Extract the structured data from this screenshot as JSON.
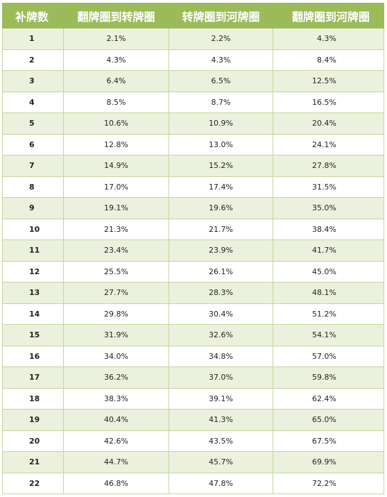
{
  "headers": [
    "补牌数",
    "翻牌圈到转牌圈",
    "转牌圈到河牌圈",
    "翻牌圈到河牌圈"
  ],
  "rows": [
    [
      "1",
      "2.1%",
      "2.2%",
      "4.3%"
    ],
    [
      "2",
      "4.3%",
      "4.3%",
      "8.4%"
    ],
    [
      "3",
      "6.4%",
      "6.5%",
      "12.5%"
    ],
    [
      "4",
      "8.5%",
      "8.7%",
      "16.5%"
    ],
    [
      "5",
      "10.6%",
      "10.9%",
      "20.4%"
    ],
    [
      "6",
      "12.8%",
      "13.0%",
      "24.1%"
    ],
    [
      "7",
      "14.9%",
      "15.2%",
      "27.8%"
    ],
    [
      "8",
      "17.0%",
      "17.4%",
      "31.5%"
    ],
    [
      "9",
      "19.1%",
      "19.6%",
      "35.0%"
    ],
    [
      "10",
      "21.3%",
      "21.7%",
      "38.4%"
    ],
    [
      "11",
      "23.4%",
      "23.9%",
      "41.7%"
    ],
    [
      "12",
      "25.5%",
      "26.1%",
      "45.0%"
    ],
    [
      "13",
      "27.7%",
      "28.3%",
      "48.1%"
    ],
    [
      "14",
      "29.8%",
      "30.4%",
      "51.2%"
    ],
    [
      "15",
      "31.9%",
      "32.6%",
      "54.1%"
    ],
    [
      "16",
      "34.0%",
      "34.8%",
      "57.0%"
    ],
    [
      "17",
      "36.2%",
      "37.0%",
      "59.8%"
    ],
    [
      "18",
      "38.3%",
      "39.1%",
      "62.4%"
    ],
    [
      "19",
      "40.4%",
      "41.3%",
      "65.0%"
    ],
    [
      "20",
      "42.6%",
      "43.5%",
      "67.5%"
    ],
    [
      "21",
      "44.7%",
      "45.7%",
      "69.9%"
    ],
    [
      "22",
      "46.8%",
      "47.8%",
      "72.2%"
    ]
  ],
  "colors": {
    "header_bg": "#9bbb59",
    "row_alt_bg": "#ebf1dd",
    "border": "#c3d69b"
  }
}
